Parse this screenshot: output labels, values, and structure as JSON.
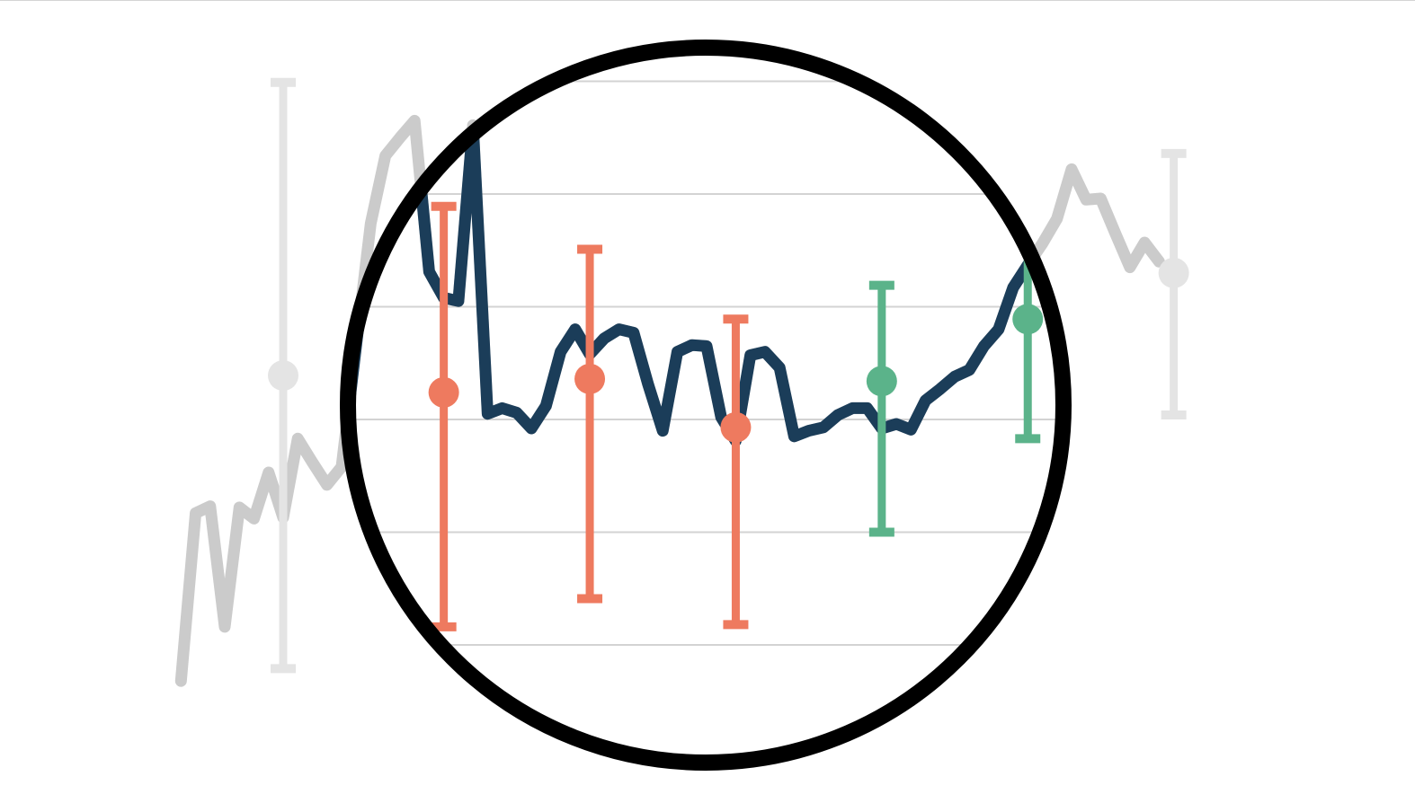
{
  "chart_data": {
    "type": "line",
    "title": "",
    "xlabel": "",
    "ylabel": "",
    "grid": true,
    "legend": "none",
    "focus_window": {
      "x_from": 1,
      "x_to": 40,
      "shape": "circle"
    },
    "colors": {
      "line": "#1b3d59",
      "line_dimmed": "#cbcbcb",
      "error_below_average": "#ee7a5f",
      "error_above_average": "#5bb38a",
      "error_dimmed": "#e4e4e4",
      "grid": "#d3d3d3",
      "lens": "#000000"
    },
    "series": [
      {
        "x": [
          -13,
          -12,
          -11,
          -10,
          -9,
          -8,
          -7,
          -6,
          -5,
          -4,
          -3,
          -2,
          -1,
          0,
          1,
          2,
          3,
          4,
          5,
          6,
          7,
          8,
          9,
          10,
          11,
          12,
          13,
          14,
          15,
          16,
          17,
          18,
          19,
          20,
          21,
          22,
          23,
          24,
          25,
          26,
          27,
          28,
          29,
          30,
          31,
          32,
          33,
          34,
          35,
          36,
          37,
          38,
          39,
          40,
          41,
          42,
          43,
          44,
          45,
          46,
          47,
          48,
          49,
          50,
          51,
          52,
          53,
          54
        ],
        "values": [
          -2.32,
          -0.83,
          -0.77,
          -1.84,
          -0.78,
          -0.88,
          -0.47,
          -0.87,
          -0.17,
          -0.38,
          -0.58,
          -0.42,
          0.66,
          1.74,
          2.34,
          2.5,
          2.65,
          1.31,
          1.08,
          1.05,
          2.61,
          0.05,
          0.1,
          0.06,
          -0.08,
          0.12,
          0.6,
          0.8,
          0.58,
          0.72,
          0.8,
          0.77,
          0.31,
          -0.1,
          0.6,
          0.66,
          0.65,
          0.02,
          -0.19,
          0.57,
          0.6,
          0.46,
          -0.15,
          -0.1,
          -0.07,
          0.04,
          0.1,
          0.1,
          -0.08,
          -0.04,
          -0.09,
          0.17,
          0.27,
          0.38,
          0.44,
          0.65,
          0.8,
          1.17,
          1.37,
          1.56,
          1.78,
          2.22,
          1.95,
          1.96,
          1.65,
          1.35,
          1.57,
          1.4
        ]
      }
    ],
    "error_bars": [
      {
        "x": -6,
        "y": 0.39,
        "low": -2.21,
        "high": 2.99,
        "group": "dimmed"
      },
      {
        "x": 5,
        "y": 0.24,
        "low": -1.84,
        "high": 1.89,
        "group": "below_average"
      },
      {
        "x": 15,
        "y": 0.36,
        "low": -1.59,
        "high": 1.51,
        "group": "below_average"
      },
      {
        "x": 25,
        "y": -0.07,
        "low": -1.82,
        "high": 0.89,
        "group": "below_average"
      },
      {
        "x": 35,
        "y": 0.34,
        "low": -1.0,
        "high": 1.19,
        "group": "above_average"
      },
      {
        "x": 45,
        "y": 0.89,
        "low": -0.17,
        "high": 1.85,
        "group": "above_average"
      },
      {
        "x": 55,
        "y": 1.3,
        "low": 0.04,
        "high": 2.36,
        "group": "dimmed"
      }
    ],
    "y_gridlines": [
      -2,
      -1,
      0,
      1,
      2,
      3
    ],
    "xlim": [
      -20,
      80
    ],
    "ylim": [
      -2.6,
      3.4
    ]
  }
}
